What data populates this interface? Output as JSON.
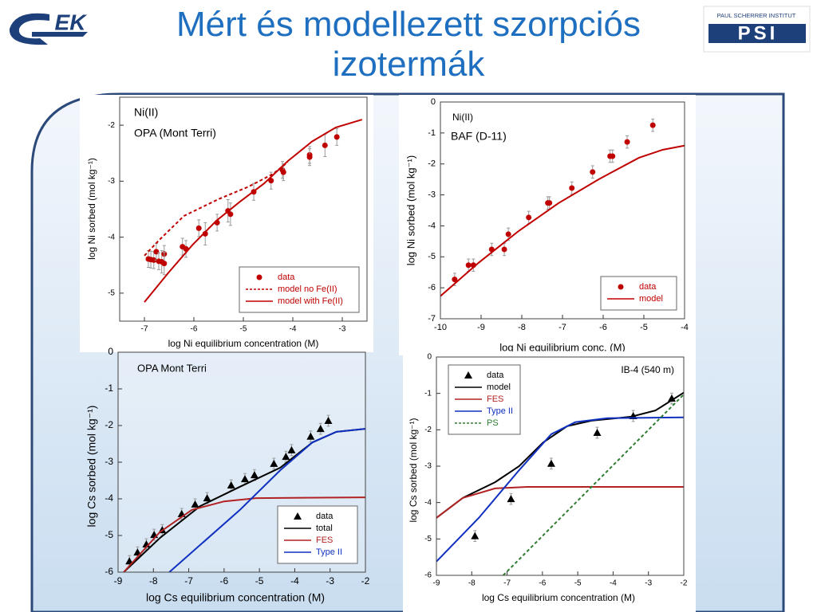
{
  "slide": {
    "title": "Mért és modellezett szorpciós izotermák",
    "logo_left": "EK",
    "logo_right_caption": "PAUL SCHERRER INSTITUT",
    "logo_right": "PSI"
  },
  "chart_data": [
    {
      "type": "line",
      "annotations": [
        "Ni(II)",
        "OPA (Mont Terri)"
      ],
      "xlabel": "log Ni equilibrium concentration (M)",
      "ylabel": "log Ni sorbed (mol kg⁻¹)",
      "xlim": [
        -7.5,
        -2.5
      ],
      "ylim": [
        -5.5,
        -1.5
      ],
      "xticks": [
        -7,
        -6,
        -5,
        -4,
        -3
      ],
      "yticks": [
        -2,
        -3,
        -4,
        -5
      ],
      "legend": "lower right",
      "series": [
        {
          "name": "data",
          "style": "markers",
          "marker": "circle",
          "color": "#c00000",
          "x": [
            -6.92,
            -6.87,
            -6.81,
            -6.76,
            -6.71,
            -6.65,
            -6.6,
            -6.6,
            -6.23,
            -6.16,
            -5.9,
            -5.77,
            -5.53,
            -5.31,
            -5.26,
            -4.79,
            -4.44,
            -4.21,
            -4.19,
            -3.66,
            -3.66,
            -3.35,
            -3.11
          ],
          "values": [
            -4.39,
            -4.4,
            -4.41,
            -4.26,
            -4.43,
            -4.44,
            -4.3,
            -4.47,
            -4.17,
            -4.21,
            -3.84,
            -3.94,
            -3.74,
            -3.53,
            -3.59,
            -3.19,
            -2.99,
            -2.8,
            -2.84,
            -2.53,
            -2.57,
            -2.36,
            -2.21
          ],
          "errors": [
            0.15,
            0.15,
            0.15,
            0.15,
            0.15,
            0.2,
            0.15,
            0.2,
            0.15,
            0.15,
            0.15,
            0.2,
            0.15,
            0.2,
            0.2,
            0.15,
            0.15,
            0.15,
            0.15,
            0.15,
            0.15,
            0.2,
            0.15
          ]
        },
        {
          "name": "model no Fe(II)",
          "style": "dashed",
          "color": "#c00000",
          "x": [
            -7,
            -6.7,
            -6.2,
            -5.5,
            -4.9,
            -4.4,
            -4.1
          ],
          "values": [
            -4.33,
            -4.05,
            -3.62,
            -3.32,
            -3.1,
            -2.87,
            -2.66
          ]
        },
        {
          "name": "model with Fe(II)",
          "style": "solid",
          "color": "#c00000",
          "x": [
            -7,
            -6.52,
            -6.03,
            -5.55,
            -5.06,
            -4.58,
            -4.1,
            -3.61,
            -3.13,
            -2.6
          ],
          "values": [
            -5.16,
            -4.64,
            -4.14,
            -3.71,
            -3.36,
            -3.04,
            -2.64,
            -2.29,
            -2.04,
            -1.9
          ]
        }
      ]
    },
    {
      "type": "line",
      "annotations": [
        "Ni(II)",
        "BAF (D-11)"
      ],
      "xlabel": "log Ni equilibrium conc. (M)",
      "ylabel": "log Ni sorbed (mol kg⁻¹)",
      "xlim": [
        -10,
        -4
      ],
      "ylim": [
        -7,
        0
      ],
      "xticks": [
        -10,
        -9,
        -8,
        -7,
        -6,
        -5,
        -4
      ],
      "yticks": [
        0,
        -1,
        -2,
        -3,
        -4,
        -5,
        -6,
        -7
      ],
      "legend": "lower right",
      "series": [
        {
          "name": "data",
          "style": "markers",
          "marker": "circle",
          "color": "#c00000",
          "x": [
            -9.65,
            -9.31,
            -9.19,
            -8.74,
            -8.43,
            -8.33,
            -7.83,
            -7.36,
            -7.32,
            -6.77,
            -6.26,
            -5.83,
            -5.77,
            -5.41,
            -4.78
          ],
          "values": [
            -5.73,
            -5.27,
            -5.27,
            -4.76,
            -4.76,
            -4.27,
            -3.73,
            -3.26,
            -3.26,
            -2.78,
            -2.26,
            -1.75,
            -1.75,
            -1.29,
            -0.75
          ],
          "errors": [
            0.2,
            0.2,
            0.2,
            0.2,
            0.2,
            0.2,
            0.2,
            0.2,
            0.2,
            0.2,
            0.2,
            0.2,
            0.2,
            0.2,
            0.2
          ]
        },
        {
          "name": "model",
          "style": "solid",
          "color": "#c00000",
          "x": [
            -10,
            -9.06,
            -8.07,
            -7.09,
            -6.1,
            -5.12,
            -4.53,
            -4
          ],
          "values": [
            -6.27,
            -5.19,
            -4.16,
            -3.26,
            -2.49,
            -1.8,
            -1.54,
            -1.41
          ]
        }
      ]
    },
    {
      "type": "line",
      "annotations": [
        "OPA Mont Terri"
      ],
      "xlabel": "log Cs equilibrium concentration  (M)",
      "ylabel": "log Cs sorbed (mol kg⁻¹)",
      "xlim": [
        -9,
        -2
      ],
      "ylim": [
        -6,
        0
      ],
      "xticks": [
        -9,
        -8,
        -7,
        -6,
        -5,
        -4,
        -3,
        -2
      ],
      "yticks": [
        0,
        -1,
        -2,
        -3,
        -4,
        -5,
        -6
      ],
      "legend": "lower right",
      "series": [
        {
          "name": "data",
          "style": "markers",
          "marker": "triangle",
          "color": "#000000",
          "x": [
            -8.68,
            -8.45,
            -8.2,
            -7.98,
            -7.75,
            -7.2,
            -6.82,
            -6.48,
            -5.8,
            -5.41,
            -5.14,
            -4.59,
            -4.25,
            -4.09,
            -3.55,
            -3.27,
            -3.05
          ],
          "values": [
            -5.7,
            -5.46,
            -5.24,
            -4.98,
            -4.85,
            -4.41,
            -4.15,
            -3.98,
            -3.63,
            -3.46,
            -3.35,
            -3.04,
            -2.85,
            -2.67,
            -2.3,
            -2.09,
            -1.87
          ],
          "errors": [
            0.15,
            0.15,
            0.15,
            0.15,
            0.15,
            0.15,
            0.15,
            0.15,
            0.15,
            0.15,
            0.15,
            0.15,
            0.15,
            0.15,
            0.15,
            0.15,
            0.15
          ]
        },
        {
          "name": "total",
          "style": "solid",
          "color": "#000000",
          "x": [
            -8.84,
            -7.82,
            -6.68,
            -5.55,
            -4.41,
            -3.5,
            -2.82,
            -2
          ],
          "values": [
            -6,
            -5.07,
            -4.2,
            -3.67,
            -3.15,
            -2.46,
            -2.17,
            -2.09
          ]
        },
        {
          "name": "FES",
          "style": "solid",
          "color": "#b22222",
          "x": [
            -8.84,
            -7.82,
            -6.91,
            -6,
            -5.09,
            -2
          ],
          "values": [
            -6,
            -4.91,
            -4.3,
            -4.07,
            -3.98,
            -3.96
          ]
        },
        {
          "name": "Type II",
          "style": "solid",
          "color": "#1030c0",
          "x": [
            -7.55,
            -5.55,
            -4.41,
            -3.5,
            -2.82,
            -2
          ],
          "values": [
            -6,
            -4.3,
            -3.22,
            -2.46,
            -2.17,
            -2.09
          ]
        }
      ]
    },
    {
      "type": "line",
      "annotations": [
        "IB-4 (540 m)"
      ],
      "xlabel": "log Cs equilibrium concentration  (M)",
      "ylabel": "log Cs sorbed (mol kg⁻¹)",
      "xlim": [
        -9,
        -2
      ],
      "ylim": [
        -6,
        0
      ],
      "xticks": [
        -9,
        -8,
        -7,
        -6,
        -5,
        -4,
        -3,
        -2
      ],
      "yticks": [
        0,
        -1,
        -2,
        -3,
        -4,
        -5,
        -6
      ],
      "legend": "upper left",
      "series": [
        {
          "name": "data",
          "style": "markers",
          "marker": "triangle",
          "color": "#000000",
          "x": [
            -7.91,
            -6.89,
            -5.75,
            -4.45,
            -3.43,
            -2.34
          ],
          "values": [
            -4.92,
            -3.9,
            -2.93,
            -2.08,
            -1.62,
            -1.14
          ],
          "errors": [
            0.15,
            0.15,
            0.15,
            0.15,
            0.15,
            0.15
          ]
        },
        {
          "name": "model",
          "style": "solid",
          "color": "#000000",
          "x": [
            -9,
            -8.25,
            -7.34,
            -6.66,
            -5.98,
            -5.3,
            -4.61,
            -3.48,
            -2.8,
            -2
          ],
          "values": [
            -4.42,
            -3.87,
            -3.44,
            -3,
            -2.35,
            -1.9,
            -1.75,
            -1.64,
            -1.47,
            -0.98
          ]
        },
        {
          "name": "FES",
          "style": "solid",
          "color": "#b22222",
          "x": [
            -9,
            -8.25,
            -7.34,
            -6.43,
            -2
          ],
          "values": [
            -4.42,
            -3.87,
            -3.61,
            -3.57,
            -3.57
          ]
        },
        {
          "name": "Type II",
          "style": "solid",
          "color": "#1030c0",
          "x": [
            -9,
            -7.8,
            -6.66,
            -5.75,
            -5.07,
            -4.16,
            -2
          ],
          "values": [
            -5.62,
            -4.42,
            -3.11,
            -2.12,
            -1.79,
            -1.68,
            -1.66
          ]
        },
        {
          "name": "PS",
          "style": "dashed",
          "color": "#2e7d32",
          "x": [
            -7.11,
            -2
          ],
          "values": [
            -6,
            -1.03
          ]
        }
      ]
    }
  ]
}
